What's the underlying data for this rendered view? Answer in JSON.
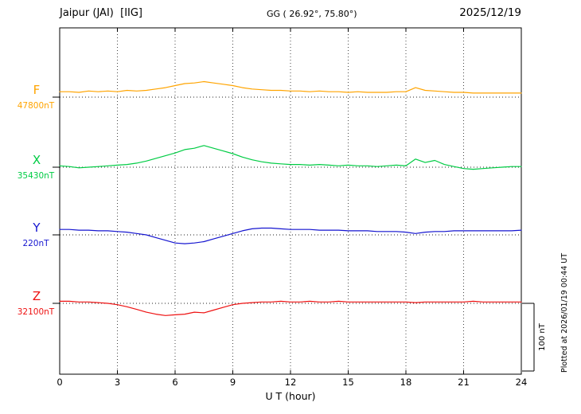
{
  "header": {
    "station": "Jaipur (JAI)  [IIG]",
    "coords": "GG ( 26.92°, 75.80°)",
    "date": "2025/12/19"
  },
  "axis": {
    "xlabel": "U T (hour)",
    "ticks": [
      0,
      3,
      6,
      9,
      12,
      15,
      18,
      21,
      24
    ]
  },
  "scalebar": {
    "label": "100 nT",
    "nT": 100
  },
  "plotted_note": "Plotted at 2026/01/19 00:44 UT",
  "chart_data": {
    "type": "line",
    "title": "Jaipur (JAI) [IIG] magnetogram 2025/12/19",
    "xlabel": "U T (hour)",
    "xlim": [
      0,
      24
    ],
    "x_start": 0,
    "x_step_hours": 0.5,
    "grid": "dotted vertical every 3 hours, dotted horizontal baselines per component",
    "scale_bar_nT": 100,
    "series": [
      {
        "name": "F",
        "baseline_label": "47800nT",
        "color": "#FFA400",
        "offsets_nT": [
          8,
          8,
          7,
          9,
          8,
          9,
          8,
          10,
          9,
          10,
          12,
          14,
          17,
          20,
          21,
          23,
          21,
          19,
          17,
          14,
          12,
          11,
          10,
          10,
          9,
          9,
          8,
          9,
          8,
          8,
          7,
          8,
          7,
          7,
          7,
          8,
          8,
          14,
          10,
          9,
          8,
          7,
          7,
          6,
          6,
          6,
          6,
          6,
          6
        ]
      },
      {
        "name": "X",
        "baseline_label": "35430nT",
        "color": "#00CC44",
        "offsets_nT": [
          2,
          1,
          -1,
          0,
          1,
          2,
          3,
          4,
          6,
          9,
          13,
          17,
          21,
          26,
          28,
          32,
          28,
          24,
          20,
          15,
          11,
          8,
          6,
          5,
          4,
          4,
          3,
          4,
          3,
          2,
          3,
          2,
          2,
          1,
          2,
          3,
          2,
          12,
          7,
          10,
          4,
          1,
          -2,
          -3,
          -2,
          -1,
          0,
          1,
          1
        ]
      },
      {
        "name": "Y",
        "baseline_label": "220nT",
        "color": "#1515D0",
        "offsets_nT": [
          8,
          8,
          7,
          7,
          6,
          6,
          5,
          4,
          2,
          0,
          -4,
          -8,
          -12,
          -13,
          -12,
          -10,
          -6,
          -2,
          2,
          6,
          9,
          10,
          10,
          9,
          8,
          8,
          8,
          7,
          7,
          7,
          6,
          6,
          6,
          5,
          5,
          5,
          4,
          2,
          4,
          5,
          5,
          6,
          6,
          6,
          6,
          6,
          6,
          6,
          7
        ]
      },
      {
        "name": "Z",
        "baseline_label": "32100nT",
        "color": "#EE1111",
        "offsets_nT": [
          3,
          3,
          2,
          2,
          1,
          0,
          -2,
          -5,
          -9,
          -13,
          -16,
          -18,
          -17,
          -16,
          -13,
          -14,
          -10,
          -6,
          -2,
          0,
          1,
          2,
          2,
          3,
          2,
          2,
          3,
          2,
          2,
          3,
          2,
          2,
          2,
          2,
          2,
          2,
          2,
          1,
          2,
          2,
          2,
          2,
          2,
          3,
          2,
          2,
          2,
          2,
          2
        ]
      }
    ]
  }
}
